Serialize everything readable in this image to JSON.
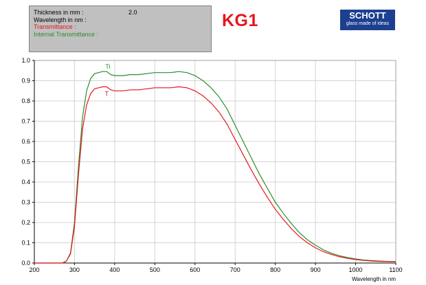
{
  "header": {
    "rows": [
      {
        "label": "Thickness in mm :",
        "value": "2.0",
        "color": "#000000"
      },
      {
        "label": "Wavelength in nm :",
        "value": "",
        "color": "#000000"
      },
      {
        "label": "Transmittance :",
        "value": "",
        "color": "#e8141c"
      },
      {
        "label": "Internal Transmittance :",
        "value": "",
        "color": "#2e8b2e"
      }
    ],
    "product": "KG1",
    "logo": {
      "brand": "SCHOTT",
      "tagline": "glass made of ideas"
    }
  },
  "chart_data": {
    "type": "line",
    "xlabel": "Wavelength in nm",
    "ylabel": "",
    "xlim": [
      200,
      1100
    ],
    "ylim": [
      0,
      1.0
    ],
    "xticks": [
      200,
      300,
      400,
      500,
      600,
      700,
      800,
      900,
      1000,
      1100
    ],
    "yticks": [
      0.0,
      0.1,
      0.2,
      0.3,
      0.4,
      0.5,
      0.6,
      0.7,
      0.8,
      0.9,
      1.0
    ],
    "grid": true,
    "series": [
      {
        "name": "Ti",
        "color": "#2e8b2e",
        "x": [
          200,
          270,
          280,
          290,
          300,
          310,
          320,
          330,
          340,
          350,
          360,
          370,
          380,
          390,
          400,
          420,
          440,
          460,
          480,
          500,
          520,
          540,
          560,
          580,
          600,
          620,
          640,
          660,
          680,
          700,
          720,
          740,
          760,
          780,
          800,
          820,
          840,
          860,
          880,
          900,
          920,
          940,
          960,
          980,
          1000,
          1020,
          1040,
          1060,
          1080,
          1100
        ],
        "y": [
          0.0,
          0.0,
          0.01,
          0.05,
          0.2,
          0.48,
          0.72,
          0.85,
          0.91,
          0.935,
          0.94,
          0.945,
          0.945,
          0.93,
          0.925,
          0.925,
          0.93,
          0.93,
          0.935,
          0.94,
          0.94,
          0.94,
          0.945,
          0.94,
          0.925,
          0.9,
          0.865,
          0.82,
          0.76,
          0.68,
          0.6,
          0.52,
          0.44,
          0.37,
          0.3,
          0.245,
          0.195,
          0.15,
          0.115,
          0.088,
          0.065,
          0.048,
          0.036,
          0.027,
          0.02,
          0.015,
          0.012,
          0.01,
          0.008,
          0.007
        ]
      },
      {
        "name": "T",
        "color": "#e8141c",
        "x": [
          200,
          270,
          280,
          290,
          300,
          310,
          320,
          330,
          340,
          350,
          360,
          370,
          380,
          390,
          400,
          420,
          440,
          460,
          480,
          500,
          520,
          540,
          560,
          580,
          600,
          620,
          640,
          660,
          680,
          700,
          720,
          740,
          760,
          780,
          800,
          820,
          840,
          860,
          880,
          900,
          920,
          940,
          960,
          980,
          1000,
          1020,
          1040,
          1060,
          1080,
          1100
        ],
        "y": [
          0.0,
          0.0,
          0.01,
          0.045,
          0.18,
          0.44,
          0.66,
          0.78,
          0.835,
          0.86,
          0.865,
          0.87,
          0.87,
          0.855,
          0.85,
          0.85,
          0.855,
          0.855,
          0.86,
          0.865,
          0.865,
          0.865,
          0.87,
          0.865,
          0.85,
          0.825,
          0.79,
          0.745,
          0.685,
          0.61,
          0.535,
          0.46,
          0.39,
          0.325,
          0.265,
          0.215,
          0.17,
          0.13,
          0.1,
          0.075,
          0.056,
          0.042,
          0.031,
          0.023,
          0.017,
          0.013,
          0.01,
          0.008,
          0.007,
          0.006
        ]
      }
    ],
    "curve_labels": [
      {
        "text": "Ti",
        "x": 383,
        "y": 0.96,
        "color": "#2e8b2e"
      },
      {
        "text": "T",
        "x": 380,
        "y": 0.825,
        "color": "#e8141c"
      }
    ]
  }
}
